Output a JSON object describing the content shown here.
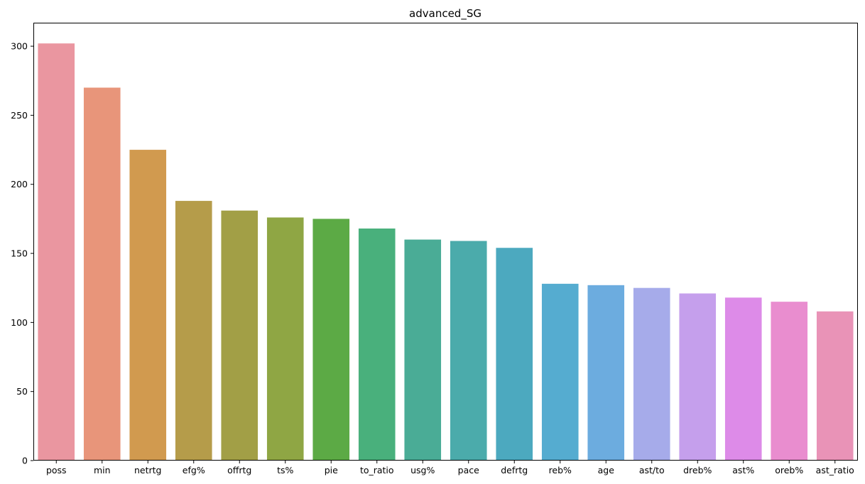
{
  "chart_data": {
    "type": "bar",
    "title": "advanced_SG",
    "xlabel": "",
    "ylabel": "",
    "categories": [
      "poss",
      "min",
      "netrtg",
      "efg%",
      "offrtg",
      "ts%",
      "pie",
      "to_ratio",
      "usg%",
      "pace",
      "defrtg",
      "reb%",
      "age",
      "ast/to",
      "dreb%",
      "ast%",
      "oreb%",
      "ast_ratio"
    ],
    "values": [
      302,
      270,
      225,
      188,
      181,
      176,
      175,
      168,
      160,
      159,
      154,
      128,
      127,
      125,
      121,
      118,
      115,
      108
    ],
    "colors": [
      "#ea96a0",
      "#e8957a",
      "#d19a4f",
      "#b59c4a",
      "#a29f46",
      "#8fa644",
      "#5caa45",
      "#49b07c",
      "#4aac96",
      "#4babab",
      "#4ca9bf",
      "#55acd0",
      "#6cacdf",
      "#a6abea",
      "#c59fec",
      "#dd8be8",
      "#e98dcf",
      "#e993b7"
    ],
    "ylim": [
      0,
      317
    ],
    "yticks": [
      0,
      50,
      100,
      150,
      200,
      250,
      300
    ],
    "grid": false,
    "legend": "none"
  }
}
